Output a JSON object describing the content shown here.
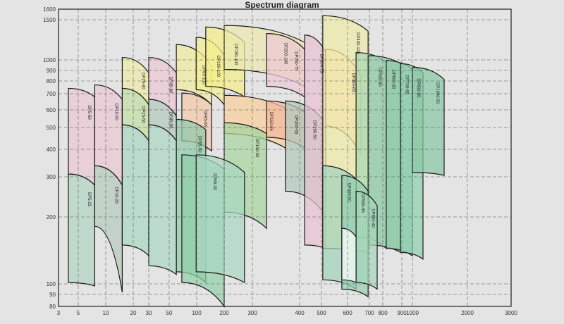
{
  "chart_data": {
    "type": "area",
    "title": "Spectrum diagram",
    "xlabel": "",
    "ylabel": "",
    "grid": true,
    "xlim": [
      3,
      3000
    ],
    "ylim": [
      80,
      1600
    ],
    "x_ticks": [
      3,
      5,
      10,
      20,
      30,
      50,
      100,
      200,
      300,
      400,
      500,
      600,
      700,
      800,
      900,
      1000,
      2000,
      3000
    ],
    "y_ticks": [
      80,
      90,
      100,
      200,
      300,
      400,
      500,
      600,
      700,
      800,
      900,
      1000,
      1500,
      1600
    ],
    "regions": [
      {
        "label": "DP5-50",
        "q": [
          4,
          8
        ],
        "top": [
          742,
          680
        ],
        "bottom": [
          310,
          279
        ],
        "color": "#e9c6d2"
      },
      {
        "label": "DP5-25",
        "q": [
          4,
          8
        ],
        "top": [
          310,
          279
        ],
        "bottom": [
          102,
          98
        ],
        "color": "#b0d4c0"
      },
      {
        "label": "DP10-50",
        "q": [
          8,
          16
        ],
        "top": [
          769,
          665
        ],
        "bottom": [
          340,
          279
        ],
        "color": "#e9c6d2"
      },
      {
        "label": "DP10-25",
        "q": [
          8,
          16
        ],
        "top": [
          340,
          279
        ],
        "bottom": [
          186,
          92
        ],
        "color": "#b4cbbb"
      },
      {
        "label": "DP25-80",
        "q": [
          16,
          30
        ],
        "top": [
          1030,
          877
        ],
        "bottom": [
          742,
          632
        ],
        "color": "#eeeaa8"
      },
      {
        "label": "DP25-50",
        "q": [
          16,
          30
        ],
        "top": [
          742,
          632
        ],
        "bottom": [
          515,
          439
        ],
        "color": "#c2dea4"
      },
      {
        "label": "",
        "q": [
          16,
          30
        ],
        "top": [
          515,
          439
        ],
        "bottom": [
          158,
          142
        ],
        "color": "#a9d7c2"
      },
      {
        "label": "DP45-80",
        "q": [
          30,
          63
        ],
        "top": [
          1030,
          877
        ],
        "bottom": [
          665,
          566
        ],
        "color": "#e9c6d2"
      },
      {
        "label": "DP45-50",
        "q": [
          30,
          63
        ],
        "top": [
          665,
          566
        ],
        "bottom": [
          515,
          439
        ],
        "color": "#b4c9ba"
      },
      {
        "label": "",
        "q": [
          30,
          63
        ],
        "top": [
          515,
          439
        ],
        "bottom": [
          127,
          114
        ],
        "color": "#a9d7c2"
      },
      {
        "label": "DP65-100",
        "q": [
          63,
          154
        ],
        "top": [
          1191,
          944
        ],
        "bottom": [
          731,
          632
        ],
        "color": "#f0ec9c"
      },
      {
        "label": "DP65-65",
        "q": [
          73,
          154
        ],
        "top": [
          705,
          632
        ],
        "bottom": [
          439,
          394
        ],
        "color": "#f3c8a8"
      },
      {
        "label": "DP65-50",
        "q": [
          63,
          133
        ],
        "top": [
          546,
          490
        ],
        "bottom": [
          118,
          102
        ],
        "color": "#8fcba8"
      },
      {
        "label": "DP65-30",
        "q": [
          73,
          200
        ],
        "top": [
          380,
          328
        ],
        "bottom": [
          102,
          80
        ],
        "color": "#92cfa8"
      },
      {
        "label": "DP100-100",
        "q": [
          99,
          200
        ],
        "top": [
          1282,
          1052
        ],
        "bottom": [
          731,
          632
        ],
        "color": "#f2ee90"
      },
      {
        "label": "DP150-100",
        "q": [
          133,
          272
        ],
        "top": [
          1409,
          1217
        ],
        "bottom": [
          758,
          680
        ],
        "color": "#f2ee88"
      },
      {
        "label": "DP200-100",
        "q": [
          200,
          423
        ],
        "top": [
          1429,
          1217
        ],
        "bottom": [
          910,
          758
        ],
        "color": "#ece8b0"
      },
      {
        "label": "DP250-75",
        "q": [
          330,
          423
        ],
        "top": [
          1328,
          1132
        ],
        "bottom": [
          758,
          680
        ],
        "color": "#ebc8d2"
      },
      {
        "label": "DP150-65",
        "q": [
          200,
          370
        ],
        "top": [
          690,
          609
        ],
        "bottom": [
          472,
          406
        ],
        "color": "#f6cf98"
      },
      {
        "label": "DP200-65",
        "q": [
          330,
          423
        ],
        "top": [
          655,
          587
        ],
        "bottom": [
          455,
          406
        ],
        "color": "#f2b8a0"
      },
      {
        "label": "DP150-50",
        "q": [
          200,
          330
        ],
        "top": [
          527,
          472
        ],
        "bottom": [
          212,
          183
        ],
        "color": "#a6d49c"
      },
      {
        "label": "DP250-50",
        "q": [
          370,
          505
        ],
        "top": [
          655,
          546
        ],
        "bottom": [
          264,
          212
        ],
        "color": "#b0c8b8"
      },
      {
        "label": "DP300-75",
        "q": [
          423,
          516
        ],
        "top": [
          1309,
          1091
        ],
        "bottom": [
          158,
          153
        ],
        "color": "#e8c0d0"
      },
      {
        "label": "DP300-65",
        "q": [
          516,
          661
        ],
        "top": [
          1132,
          846
        ],
        "bottom": [
          508,
          380
        ],
        "color": "#f8d8b0"
      },
      {
        "label": "DP400-120",
        "q": [
          505,
          694
        ],
        "top": [
          1538,
          1358
        ],
        "bottom": [
          153,
          147
        ],
        "color": "#eeeaa8"
      },
      {
        "label": "DP500-80",
        "q": [
          639,
          818
        ],
        "top": [
          1091,
          979
        ],
        "bottom": [
          170,
          153
        ],
        "color": "#a8d8b0"
      },
      {
        "label": "DP600-80",
        "q": [
          694,
          893
        ],
        "top": [
          1052,
          964
        ],
        "bottom": [
          158,
          147
        ],
        "color": "#98ccb0"
      },
      {
        "label": "DP700-80",
        "q": [
          818,
          1000
        ],
        "top": [
          993,
          910
        ],
        "bottom": [
          153,
          142
        ],
        "color": "#8ecaa8"
      },
      {
        "label": "DP800-80",
        "q": [
          893,
          1192
        ],
        "top": [
          964,
          877
        ],
        "bottom": [
          147,
          137
        ],
        "color": "#90cfae"
      },
      {
        "label": "DP1000-50",
        "q": [
          1000,
          1577
        ],
        "top": [
          930,
          815
        ],
        "bottom": [
          316,
          305
        ],
        "color": "#88c8a4"
      },
      {
        "label": "DP400-50",
        "q": [
          505,
          639
        ],
        "top": [
          340,
          294
        ],
        "bottom": [
          106,
          95
        ],
        "color": "#9fd2b8"
      },
      {
        "label": "DP500-45",
        "q": [
          578,
          694
        ],
        "top": [
          305,
          264
        ],
        "bottom": [
          95,
          88
        ],
        "color": "#96cfb2"
      },
      {
        "label": "",
        "q": [
          578,
          639
        ],
        "top": [
          183,
          170
        ],
        "bottom": [
          106,
          102
        ],
        "color": "#ffffff"
      },
      {
        "label": "DP600-40",
        "q": [
          639,
          758
        ],
        "top": [
          264,
          228
        ],
        "bottom": [
          102,
          95
        ],
        "color": "#a4d6b8"
      },
      {
        "label": "",
        "q": [
          99,
          272
        ],
        "top": [
          380,
          316
        ],
        "bottom": [
          118,
          102
        ],
        "color": "#a9d7c2"
      }
    ]
  }
}
